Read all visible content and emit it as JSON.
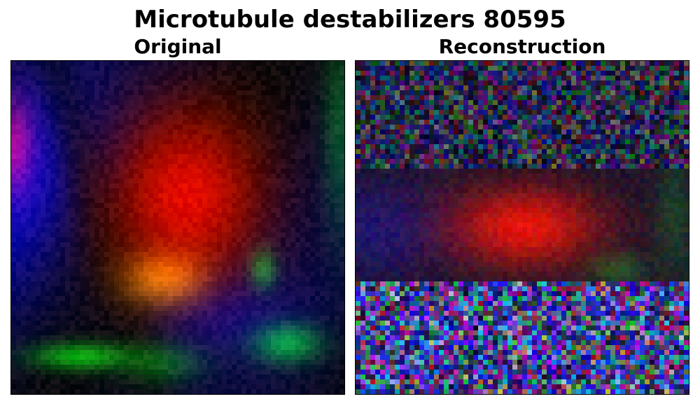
{
  "figure": {
    "title": "Microtubule destabilizers 80595"
  },
  "panels": [
    {
      "title": "Original"
    },
    {
      "title": "Reconstruction"
    }
  ],
  "colors": {
    "background": "#ffffff",
    "nucleus_red": "#d01040",
    "actin_green": "#20a040",
    "tubulin_blue": "#2040c0"
  }
}
